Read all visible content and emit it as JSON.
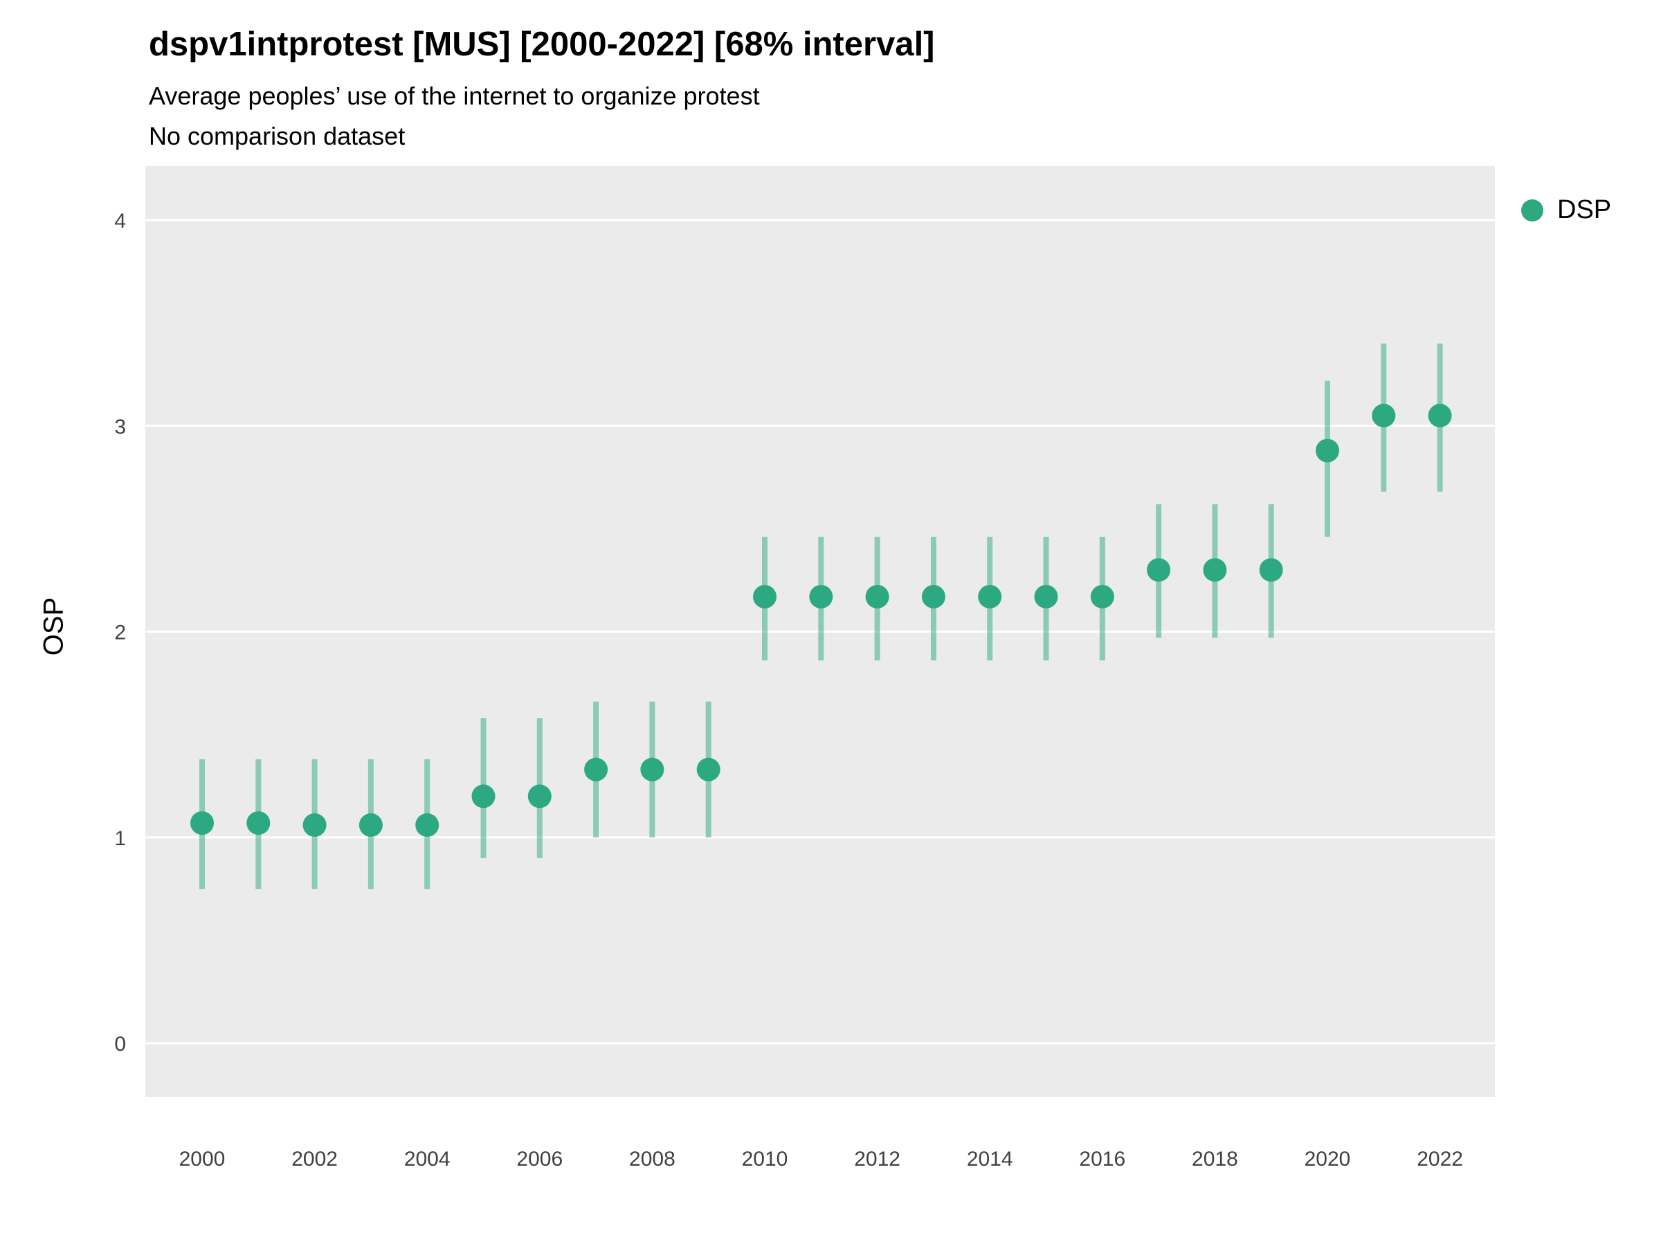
{
  "header": {
    "title": "dspv1intprotest [MUS] [2000-2022] [68% interval]",
    "subtitle": "Average peoples’ use of the internet to organize protest",
    "note": "No comparison dataset"
  },
  "legend": {
    "label": "DSP"
  },
  "colors": {
    "point": "#2ca981",
    "interval": "#2ca981",
    "interval_opacity": 0.5,
    "panel_background": "#ebebeb",
    "gridline": "#ffffff",
    "tick_text": "#404040",
    "text": "#000000"
  },
  "chart_data": {
    "type": "scatter",
    "title": "dspv1intprotest [MUS] [2000-2022] [68% interval]",
    "subtitle": "Average peoples’ use of the internet to organize protest",
    "note": "No comparison dataset",
    "xlabel": "",
    "ylabel": "OSP",
    "ylim": [
      -0.26,
      4.26
    ],
    "xlim": [
      1999,
      2023
    ],
    "grid": true,
    "legend_position": "right",
    "y_ticks": [
      0,
      1,
      2,
      3,
      4
    ],
    "x_ticks": [
      2000,
      2002,
      2004,
      2006,
      2008,
      2010,
      2012,
      2014,
      2016,
      2018,
      2020,
      2022
    ],
    "interval_label": "68% interval",
    "series": [
      {
        "name": "DSP",
        "x": [
          2000,
          2001,
          2002,
          2003,
          2004,
          2005,
          2006,
          2007,
          2008,
          2009,
          2010,
          2011,
          2012,
          2013,
          2014,
          2015,
          2016,
          2017,
          2018,
          2019,
          2020,
          2021,
          2022
        ],
        "y": [
          1.07,
          1.07,
          1.06,
          1.06,
          1.06,
          1.2,
          1.2,
          1.33,
          1.33,
          1.33,
          2.17,
          2.17,
          2.17,
          2.17,
          2.17,
          2.17,
          2.17,
          2.3,
          2.3,
          2.3,
          2.88,
          3.05,
          3.05
        ],
        "lower": [
          0.75,
          0.75,
          0.75,
          0.75,
          0.75,
          0.9,
          0.9,
          1.0,
          1.0,
          1.0,
          1.86,
          1.86,
          1.86,
          1.86,
          1.86,
          1.86,
          1.86,
          1.97,
          1.97,
          1.97,
          2.46,
          2.68,
          2.68
        ],
        "upper": [
          1.38,
          1.38,
          1.38,
          1.38,
          1.38,
          1.58,
          1.58,
          1.66,
          1.66,
          1.66,
          2.46,
          2.46,
          2.46,
          2.46,
          2.46,
          2.46,
          2.46,
          2.62,
          2.62,
          2.62,
          3.22,
          3.4,
          3.4
        ]
      }
    ]
  }
}
